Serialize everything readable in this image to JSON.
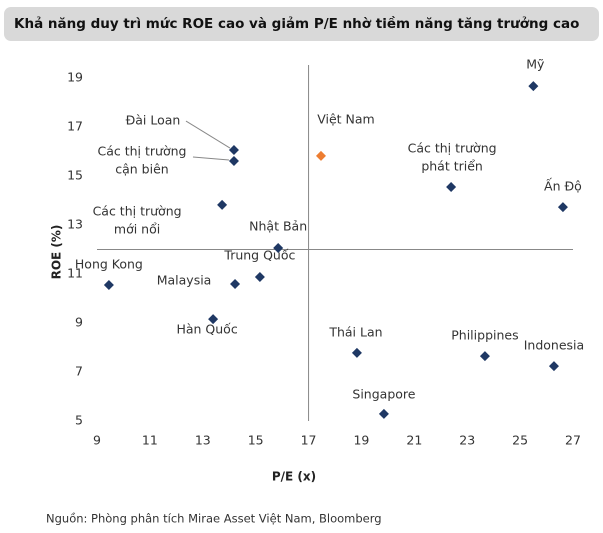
{
  "chart_data": {
    "type": "scatter",
    "title": "Khả năng duy trì mức ROE cao và giảm P/E nhờ tiềm năng tăng trưởng cao",
    "x_label": "P/E (x)",
    "y_label": "ROE (%)",
    "source": "Nguồn: Phòng phân tích Mirae Asset Việt Nam, Bloomberg",
    "xlim": [
      9,
      27
    ],
    "ylim": [
      4.6,
      19.6
    ],
    "xticks": [
      9,
      11,
      13,
      15,
      17,
      19,
      21,
      23,
      25,
      27
    ],
    "yticks": [
      5,
      7,
      9,
      11,
      13,
      15,
      17,
      19
    ],
    "reference_x": 17,
    "reference_y": 12,
    "points": [
      {
        "label": [
          "Mỹ"
        ],
        "x": 25.5,
        "y": 18.67,
        "color": "#1f3864"
      },
      {
        "label": [
          "Đài Loan"
        ],
        "x": 14.18,
        "y": 16.06,
        "color": "#1f3864"
      },
      {
        "label": [
          "Các thị trường",
          "cận biên"
        ],
        "x": 14.18,
        "y": 15.61,
        "color": "#1f3864"
      },
      {
        "label": [
          "Việt Nam"
        ],
        "x": 17.47,
        "y": 15.82,
        "color": "#ed7d31"
      },
      {
        "label": [
          "Các thị trường",
          "phát triển"
        ],
        "x": 22.39,
        "y": 14.55,
        "color": "#1f3864"
      },
      {
        "label": [
          "Ấn Độ"
        ],
        "x": 26.62,
        "y": 13.73,
        "color": "#1f3864"
      },
      {
        "label": [
          "Các thị trường",
          "mới nổi"
        ],
        "x": 13.73,
        "y": 13.82,
        "color": "#1f3864"
      },
      {
        "label": [
          "Nhật Bản"
        ],
        "x": 15.85,
        "y": 12.06,
        "color": "#1f3864"
      },
      {
        "label": [
          "Trung Quốc"
        ],
        "x": 15.16,
        "y": 10.88,
        "color": "#1f3864"
      },
      {
        "label": [
          "Malaysia"
        ],
        "x": 14.22,
        "y": 10.59,
        "color": "#1f3864"
      },
      {
        "label": [
          "Hong Kong"
        ],
        "x": 9.45,
        "y": 10.55,
        "color": "#1f3864"
      },
      {
        "label": [
          "Hàn Quốc"
        ],
        "x": 13.39,
        "y": 9.16,
        "color": "#1f3864"
      },
      {
        "label": [
          "Thái Lan"
        ],
        "x": 18.83,
        "y": 7.78,
        "color": "#1f3864"
      },
      {
        "label": [
          "Philippines"
        ],
        "x": 23.67,
        "y": 7.65,
        "color": "#1f3864"
      },
      {
        "label": [
          "Indonesia"
        ],
        "x": 26.28,
        "y": 7.24,
        "color": "#1f3864"
      },
      {
        "label": [
          "Singapore"
        ],
        "x": 19.85,
        "y": 5.29,
        "color": "#1f3864"
      }
    ]
  }
}
